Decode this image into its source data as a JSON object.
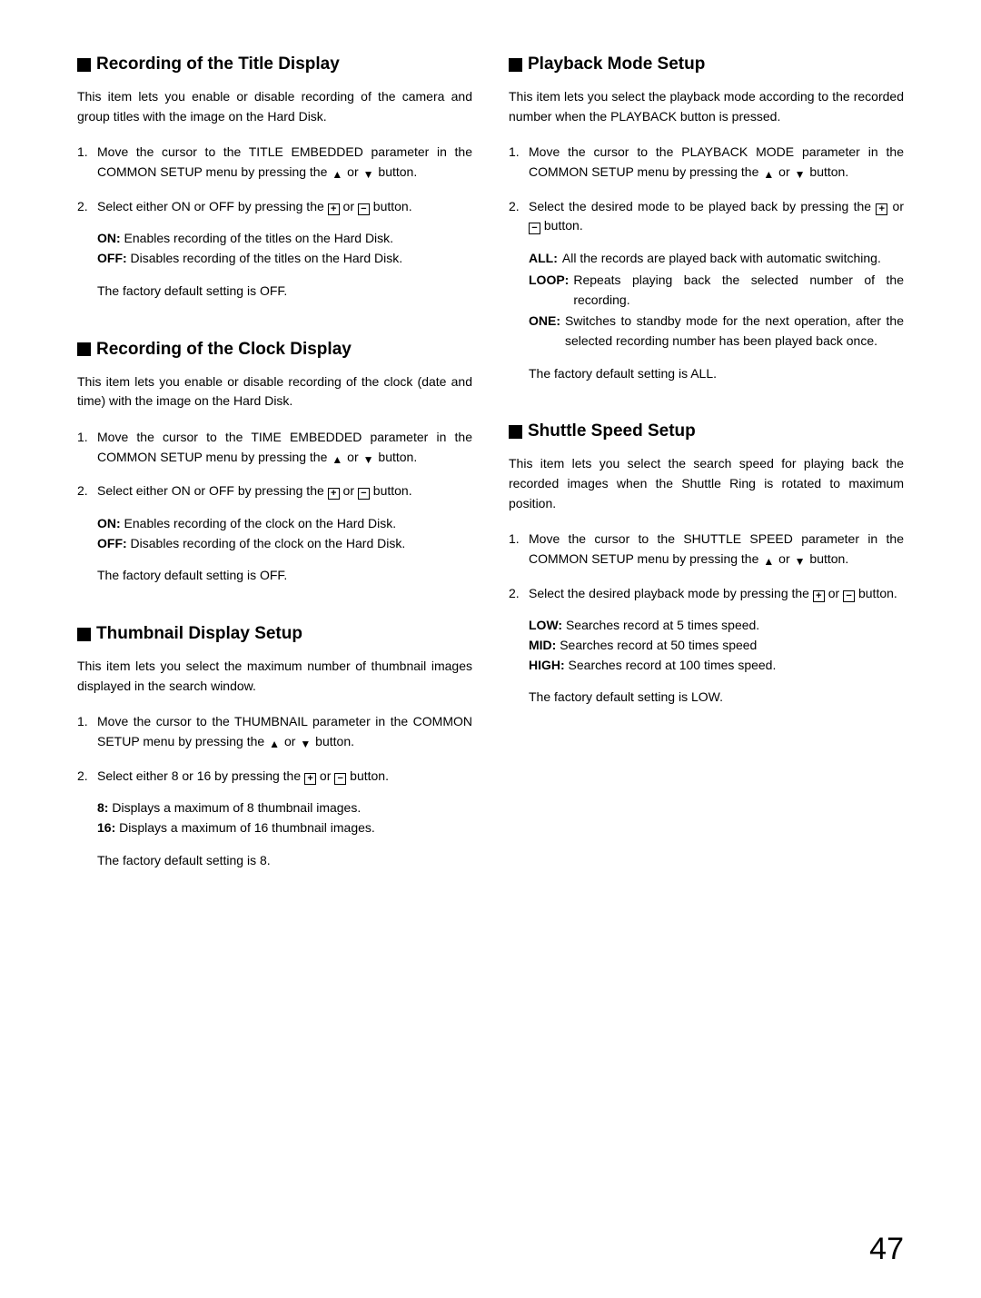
{
  "icons": {
    "up": "▲",
    "down": "▼",
    "plus": "+",
    "minus": "−"
  },
  "left": {
    "title_display": {
      "heading": "Recording of the Title Display",
      "intro": "This item lets you enable or disable recording of the camera and group titles with the image on the Hard Disk.",
      "step1a": "Move the cursor to the TITLE EMBEDDED parameter in the COMMON SETUP menu by pressing the ",
      "step1b": " or ",
      "step1c": " button.",
      "step2a": "Select either ON or OFF by pressing the ",
      "step2b": " or ",
      "step2c": " button.",
      "opt_on_label": "ON:",
      "opt_on_text": " Enables recording of the titles on the Hard Disk.",
      "opt_off_label": "OFF:",
      "opt_off_text": " Disables recording of the titles on the Hard Disk.",
      "factory": "The factory default setting is OFF."
    },
    "clock_display": {
      "heading": "Recording of the Clock Display",
      "intro": "This item lets you enable or disable recording of the clock (date and time) with the image on the Hard Disk.",
      "step1a": "Move the cursor to the TIME EMBEDDED parameter in the COMMON SETUP menu by pressing the ",
      "step1b": " or ",
      "step1c": " button.",
      "step2a": "Select either ON or OFF by pressing the ",
      "step2b": " or ",
      "step2c": " button.",
      "opt_on_label": "ON:",
      "opt_on_text": " Enables recording of the clock on the Hard Disk.",
      "opt_off_label": "OFF:",
      "opt_off_text": " Disables recording of the clock on the Hard Disk.",
      "factory": "The factory default setting is OFF."
    },
    "thumbnail": {
      "heading": "Thumbnail Display Setup",
      "intro": "This item lets you select the maximum number of thumbnail images displayed in the search window.",
      "step1a": "Move the cursor to the THUMBNAIL parameter in the COMMON SETUP menu by pressing the ",
      "step1b": " or ",
      "step1c": " button.",
      "step2a": "Select either 8 or 16 by pressing the ",
      "step2b": " or ",
      "step2c": " button.",
      "opt_8_label": "8:",
      "opt_8_text": " Displays a maximum of 8 thumbnail images.",
      "opt_16_label": "16:",
      "opt_16_text": " Displays a maximum of 16 thumbnail images.",
      "factory": "The factory default setting is 8."
    }
  },
  "right": {
    "playback": {
      "heading": "Playback Mode Setup",
      "intro": "This item lets you select the playback mode according to the recorded number when the PLAYBACK button is pressed.",
      "step1a": "Move the cursor to the PLAYBACK MODE parameter in the COMMON SETUP menu by pressing the ",
      "step1b": " or ",
      "step1c": " button.",
      "step2a": "Select the desired mode to be played back by pressing the ",
      "step2b": " or ",
      "step2c": " button.",
      "opt_all_label": "ALL:",
      "opt_all_text": "All the records are played back with automatic switching.",
      "opt_loop_label": "LOOP:",
      "opt_loop_text": "Repeats playing back the selected number of the recording.",
      "opt_one_label": "ONE:",
      "opt_one_text": "Switches to standby mode for the next operation, after the selected recording number has been played back once.",
      "factory": "The factory default setting is ALL."
    },
    "shuttle": {
      "heading": "Shuttle Speed Setup",
      "intro": "This item lets you select the search speed for playing back the recorded images when the Shuttle Ring is rotated to maximum position.",
      "step1a": "Move the cursor to the SHUTTLE SPEED parameter in the COMMON SETUP menu by pressing the ",
      "step1b": " or ",
      "step1c": " button.",
      "step2a": "Select the desired playback mode by pressing the ",
      "step2b": " or ",
      "step2c": " button.",
      "opt_low_label": "LOW:",
      "opt_low_text": " Searches record at 5 times speed.",
      "opt_mid_label": "MID:",
      "opt_mid_text": " Searches record at 50 times speed",
      "opt_high_label": "HIGH:",
      "opt_high_text": " Searches record at 100 times speed.",
      "factory": "The factory default setting is LOW."
    }
  },
  "page_number": "47"
}
